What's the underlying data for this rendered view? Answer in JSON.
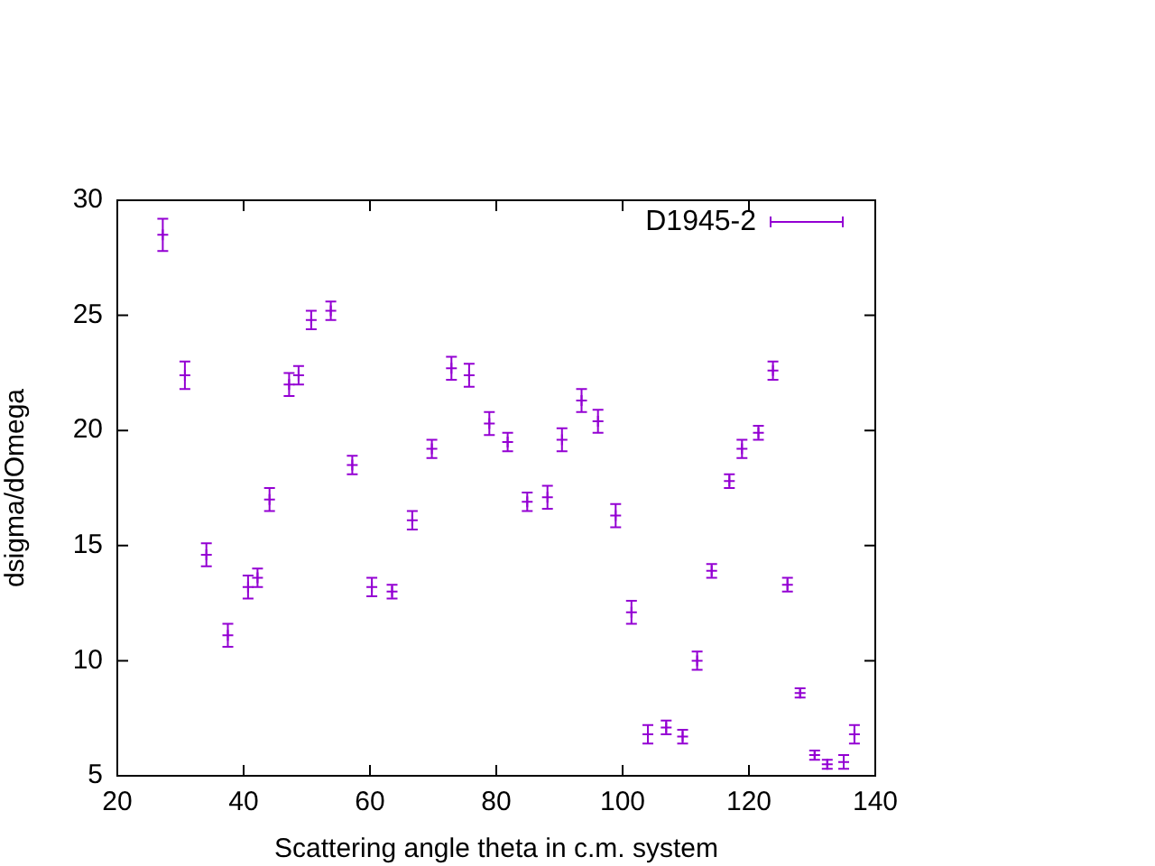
{
  "chart_data": {
    "type": "scatter",
    "xlabel": "Scattering angle theta in c.m. system",
    "ylabel": "dsigma/dOmega",
    "xlim": [
      20,
      140
    ],
    "xticks": [
      20,
      40,
      60,
      80,
      100,
      120,
      140
    ],
    "ylim": [
      5,
      30
    ],
    "yticks": [
      5,
      10,
      15,
      20,
      25,
      30
    ],
    "grid": false,
    "legend": "top right",
    "marker": "cross",
    "series": [
      {
        "name": "D1945-2",
        "color": "#9400d3",
        "x": [
          27.2,
          30.7,
          34.1,
          37.5,
          40.7,
          42.2,
          44.1,
          47.2,
          48.7,
          50.7,
          53.8,
          57.2,
          60.3,
          63.5,
          66.7,
          69.8,
          72.9,
          75.7,
          78.9,
          81.8,
          84.9,
          88.1,
          90.4,
          93.5,
          96.1,
          98.9,
          101.4,
          104.0,
          106.9,
          109.5,
          111.8,
          114.1,
          116.9,
          118.9,
          121.5,
          123.8,
          126.1,
          128.1,
          130.4,
          132.4,
          135.0,
          136.7
        ],
        "values": [
          28.5,
          22.4,
          14.6,
          11.1,
          13.2,
          13.6,
          17.0,
          22.0,
          22.4,
          24.8,
          25.2,
          18.5,
          13.2,
          13.0,
          16.1,
          19.2,
          22.7,
          22.4,
          20.3,
          19.5,
          16.9,
          17.1,
          19.6,
          21.3,
          20.4,
          16.3,
          12.1,
          6.8,
          7.1,
          6.7,
          10.0,
          13.9,
          17.8,
          19.2,
          19.9,
          22.6,
          13.3,
          8.6,
          5.9,
          5.5,
          5.6,
          6.8
        ],
        "errors": [
          0.7,
          0.6,
          0.5,
          0.5,
          0.5,
          0.4,
          0.5,
          0.5,
          0.4,
          0.4,
          0.4,
          0.4,
          0.4,
          0.3,
          0.4,
          0.4,
          0.5,
          0.5,
          0.5,
          0.4,
          0.4,
          0.5,
          0.5,
          0.5,
          0.5,
          0.5,
          0.5,
          0.4,
          0.3,
          0.3,
          0.4,
          0.3,
          0.3,
          0.4,
          0.3,
          0.4,
          0.3,
          0.2,
          0.2,
          0.2,
          0.3,
          0.4
        ]
      }
    ]
  }
}
